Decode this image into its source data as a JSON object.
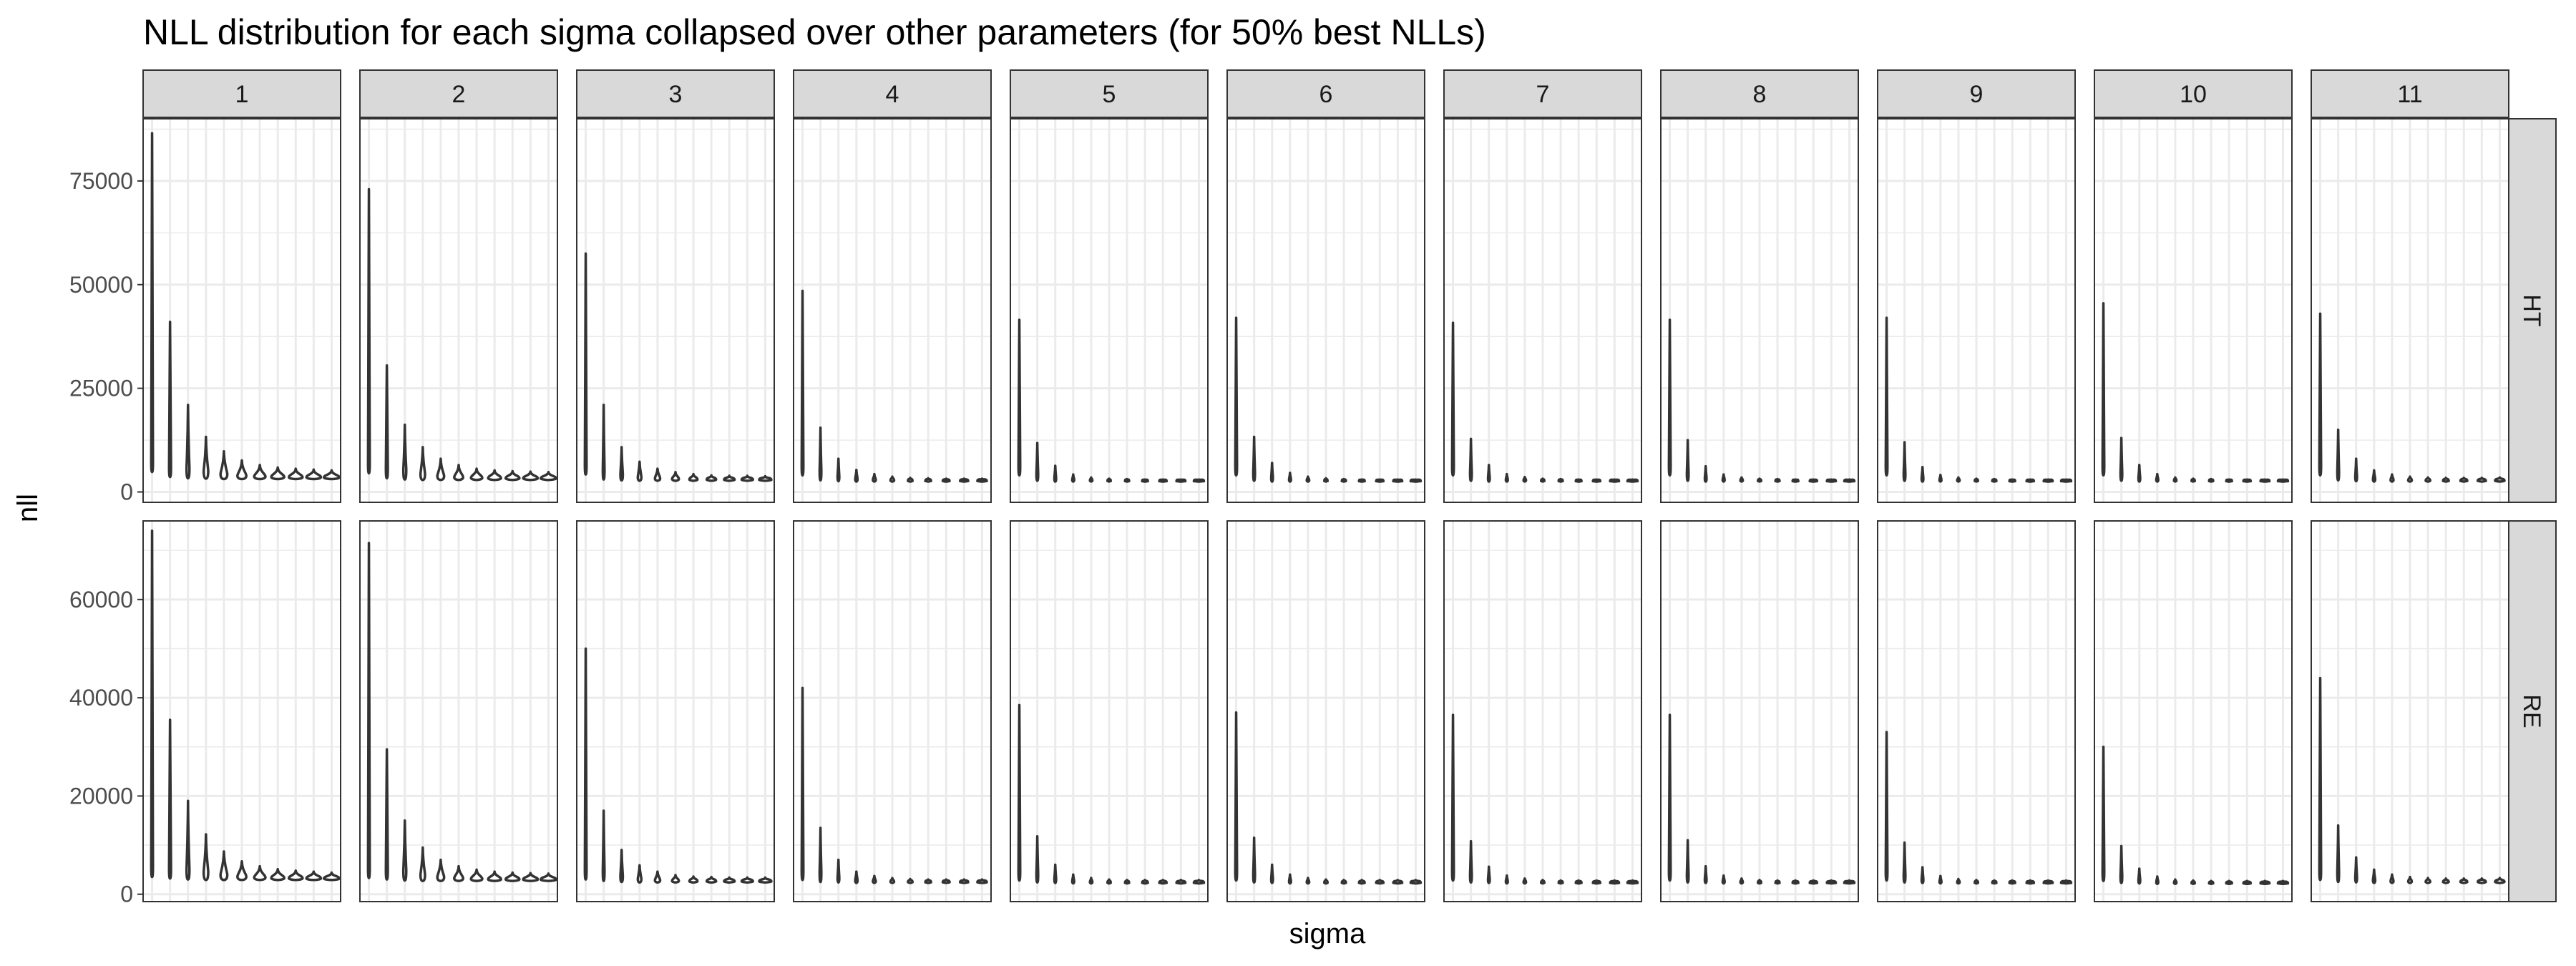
{
  "chart_data": {
    "type": "violin",
    "title": "NLL distribution for each sigma collapsed over other parameters (for 50% best NLLs)",
    "xlabel": "sigma",
    "ylabel": "nll",
    "facet_columns": [
      "1",
      "2",
      "3",
      "4",
      "5",
      "6",
      "7",
      "8",
      "9",
      "10",
      "11"
    ],
    "facet_rows": [
      "HT",
      "RE"
    ],
    "grid": true,
    "theme": "bw",
    "colors": {
      "panel_border": "#333333",
      "grid": "#ebebeb",
      "strip_fill": "#d9d9d9",
      "violin_stroke": "#333333",
      "text": "#4d4d4d"
    },
    "rows": [
      {
        "name": "HT",
        "ylim": [
          -2500,
          90000
        ],
        "yticks": [
          0,
          25000,
          50000,
          75000
        ],
        "yticklabels": [
          "0",
          "25000",
          "50000",
          "75000"
        ],
        "panels": [
          {
            "column": "1",
            "max": [
              86500,
              41000,
              21000,
              13300,
              9800,
              7600,
              6500,
              5900,
              5600,
              5400,
              5200
            ],
            "min": [
              4800,
              3600,
              3300,
              3200,
              3100,
              3100,
              3100,
              3100,
              3100,
              3100,
              3100
            ],
            "width": [
              0.1,
              0.12,
              0.18,
              0.28,
              0.42,
              0.55,
              0.7,
              0.8,
              0.85,
              0.9,
              0.95
            ]
          },
          {
            "column": "2",
            "max": [
              73000,
              30500,
              16200,
              10800,
              8000,
              6500,
              5600,
              5200,
              5000,
              4900,
              4800
            ],
            "min": [
              4500,
              3300,
              3000,
              2900,
              2900,
              2900,
              2900,
              2900,
              2900,
              2900,
              2900
            ],
            "width": [
              0.1,
              0.12,
              0.18,
              0.28,
              0.42,
              0.55,
              0.7,
              0.8,
              0.85,
              0.9,
              0.95
            ]
          },
          {
            "column": "3",
            "max": [
              57500,
              21000,
              10800,
              7300,
              5600,
              4800,
              4300,
              4000,
              3900,
              3900,
              3800
            ],
            "min": [
              4200,
              3000,
              2800,
              2700,
              2700,
              2700,
              2700,
              2700,
              2700,
              2700,
              2700
            ],
            "width": [
              0.08,
              0.1,
              0.15,
              0.22,
              0.32,
              0.42,
              0.5,
              0.58,
              0.65,
              0.7,
              0.75
            ]
          },
          {
            "column": "4",
            "max": [
              48500,
              15500,
              8000,
              5300,
              4300,
              3700,
              3400,
              3300,
              3200,
              3200,
              3200
            ],
            "min": [
              4000,
              2800,
              2600,
              2500,
              2500,
              2500,
              2500,
              2500,
              2500,
              2500,
              2500
            ],
            "width": [
              0.06,
              0.08,
              0.1,
              0.14,
              0.18,
              0.22,
              0.28,
              0.35,
              0.42,
              0.5,
              0.58
            ]
          },
          {
            "column": "5",
            "max": [
              41500,
              11800,
              6300,
              4200,
              3500,
              3200,
              3100,
              3000,
              3000,
              3000,
              3000
            ],
            "min": [
              4000,
              2700,
              2500,
              2500,
              2500,
              2500,
              2500,
              2500,
              2500,
              2500,
              2500
            ],
            "width": [
              0.06,
              0.07,
              0.09,
              0.12,
              0.15,
              0.2,
              0.25,
              0.35,
              0.45,
              0.55,
              0.62
            ]
          },
          {
            "column": "6",
            "max": [
              42000,
              13300,
              7000,
              4600,
              3700,
              3300,
              3100,
              3000,
              3000,
              3000,
              3000
            ],
            "min": [
              4000,
              2700,
              2500,
              2500,
              2500,
              2500,
              2500,
              2500,
              2500,
              2500,
              2500
            ],
            "width": [
              0.06,
              0.07,
              0.09,
              0.12,
              0.15,
              0.2,
              0.25,
              0.35,
              0.45,
              0.55,
              0.62
            ]
          },
          {
            "column": "7",
            "max": [
              40800,
              12800,
              6500,
              4300,
              3600,
              3200,
              3100,
              3000,
              3000,
              3000,
              3000
            ],
            "min": [
              4000,
              2700,
              2500,
              2500,
              2500,
              2500,
              2500,
              2500,
              2500,
              2500,
              2500
            ],
            "width": [
              0.06,
              0.07,
              0.09,
              0.12,
              0.15,
              0.2,
              0.25,
              0.35,
              0.45,
              0.55,
              0.62
            ]
          },
          {
            "column": "8",
            "max": [
              41500,
              12500,
              6200,
              4200,
              3500,
              3200,
              3100,
              3000,
              3000,
              3000,
              3000
            ],
            "min": [
              4000,
              2700,
              2500,
              2500,
              2500,
              2500,
              2500,
              2500,
              2500,
              2500,
              2500
            ],
            "width": [
              0.06,
              0.07,
              0.09,
              0.12,
              0.15,
              0.2,
              0.25,
              0.35,
              0.45,
              0.55,
              0.62
            ]
          },
          {
            "column": "9",
            "max": [
              42000,
              12000,
              6000,
              4100,
              3500,
              3200,
              3100,
              3000,
              3000,
              3000,
              3000
            ],
            "min": [
              4000,
              2700,
              2500,
              2500,
              2500,
              2500,
              2500,
              2500,
              2500,
              2500,
              2500
            ],
            "width": [
              0.06,
              0.07,
              0.09,
              0.12,
              0.15,
              0.2,
              0.25,
              0.35,
              0.45,
              0.55,
              0.62
            ]
          },
          {
            "column": "10",
            "max": [
              45500,
              13000,
              6500,
              4300,
              3500,
              3200,
              3100,
              3000,
              3000,
              3000,
              3000
            ],
            "min": [
              4000,
              2700,
              2500,
              2500,
              2500,
              2500,
              2500,
              2500,
              2500,
              2500,
              2500
            ],
            "width": [
              0.06,
              0.07,
              0.09,
              0.12,
              0.15,
              0.2,
              0.25,
              0.35,
              0.45,
              0.55,
              0.62
            ]
          },
          {
            "column": "11",
            "max": [
              43000,
              15000,
              8000,
              5200,
              4200,
              3700,
              3500,
              3400,
              3400,
              3400,
              3500
            ],
            "min": [
              4000,
              2800,
              2600,
              2500,
              2500,
              2500,
              2500,
              2500,
              2500,
              2500,
              2500
            ],
            "width": [
              0.06,
              0.08,
              0.1,
              0.14,
              0.18,
              0.22,
              0.28,
              0.35,
              0.42,
              0.5,
              0.58
            ]
          }
        ]
      },
      {
        "name": "RE",
        "ylim": [
          -1500,
          76000
        ],
        "yticks": [
          0,
          20000,
          40000,
          60000
        ],
        "yticklabels": [
          "0",
          "20000",
          "40000",
          "60000"
        ],
        "panels": [
          {
            "column": "1",
            "max": [
              74000,
              35500,
              19000,
              12200,
              8700,
              6700,
              5700,
              5100,
              4800,
              4600,
              4400
            ],
            "min": [
              3500,
              3200,
              3000,
              2900,
              2900,
              2900,
              2900,
              2900,
              2900,
              2900,
              2900
            ],
            "width": [
              0.1,
              0.12,
              0.18,
              0.28,
              0.42,
              0.55,
              0.7,
              0.8,
              0.85,
              0.9,
              0.95
            ]
          },
          {
            "column": "2",
            "max": [
              71500,
              29500,
              15000,
              9500,
              7000,
              5700,
              5000,
              4600,
              4400,
              4300,
              4200
            ],
            "min": [
              3300,
              3000,
              2800,
              2700,
              2700,
              2700,
              2700,
              2700,
              2700,
              2700,
              2700
            ],
            "width": [
              0.1,
              0.12,
              0.18,
              0.28,
              0.42,
              0.55,
              0.7,
              0.8,
              0.85,
              0.9,
              0.95
            ]
          },
          {
            "column": "3",
            "max": [
              50000,
              17000,
              9000,
              5900,
              4600,
              3900,
              3600,
              3500,
              3400,
              3400,
              3400
            ],
            "min": [
              3000,
              2700,
              2500,
              2400,
              2400,
              2400,
              2400,
              2400,
              2400,
              2400,
              2400
            ],
            "width": [
              0.08,
              0.1,
              0.15,
              0.22,
              0.32,
              0.42,
              0.5,
              0.58,
              0.65,
              0.7,
              0.75
            ]
          },
          {
            "column": "4",
            "max": [
              42000,
              13500,
              7000,
              4600,
              3700,
              3300,
              3100,
              3000,
              3000,
              3000,
              3000
            ],
            "min": [
              2900,
              2500,
              2400,
              2300,
              2300,
              2300,
              2300,
              2300,
              2300,
              2300,
              2300
            ],
            "width": [
              0.06,
              0.08,
              0.1,
              0.14,
              0.18,
              0.22,
              0.28,
              0.35,
              0.42,
              0.5,
              0.58
            ]
          },
          {
            "column": "5",
            "max": [
              38500,
              11800,
              6000,
              4000,
              3300,
              3000,
              2900,
              2900,
              2900,
              2900,
              2900
            ],
            "min": [
              2800,
              2400,
              2300,
              2200,
              2200,
              2200,
              2200,
              2200,
              2200,
              2200,
              2200
            ],
            "width": [
              0.06,
              0.07,
              0.09,
              0.12,
              0.15,
              0.2,
              0.25,
              0.35,
              0.45,
              0.55,
              0.62
            ]
          },
          {
            "column": "6",
            "max": [
              37000,
              11500,
              6000,
              4000,
              3300,
              3000,
              2900,
              2900,
              2900,
              2900,
              2900
            ],
            "min": [
              2800,
              2400,
              2300,
              2200,
              2200,
              2200,
              2200,
              2200,
              2200,
              2200,
              2200
            ],
            "width": [
              0.06,
              0.07,
              0.09,
              0.12,
              0.15,
              0.2,
              0.25,
              0.35,
              0.45,
              0.55,
              0.62
            ]
          },
          {
            "column": "7",
            "max": [
              36500,
              10800,
              5600,
              3800,
              3200,
              2900,
              2800,
              2800,
              2800,
              2800,
              2800
            ],
            "min": [
              2800,
              2400,
              2300,
              2200,
              2200,
              2200,
              2200,
              2200,
              2200,
              2200,
              2200
            ],
            "width": [
              0.06,
              0.07,
              0.09,
              0.12,
              0.15,
              0.2,
              0.25,
              0.35,
              0.45,
              0.55,
              0.62
            ]
          },
          {
            "column": "8",
            "max": [
              36500,
              11000,
              5700,
              3800,
              3200,
              2900,
              2800,
              2800,
              2800,
              2800,
              2800
            ],
            "min": [
              2800,
              2400,
              2300,
              2200,
              2200,
              2200,
              2200,
              2200,
              2200,
              2200,
              2200
            ],
            "width": [
              0.06,
              0.07,
              0.09,
              0.12,
              0.15,
              0.2,
              0.25,
              0.35,
              0.45,
              0.55,
              0.62
            ]
          },
          {
            "column": "9",
            "max": [
              33000,
              10500,
              5500,
              3700,
              3100,
              2900,
              2800,
              2800,
              2800,
              2800,
              2800
            ],
            "min": [
              2800,
              2400,
              2300,
              2200,
              2200,
              2200,
              2200,
              2200,
              2200,
              2200,
              2200
            ],
            "width": [
              0.06,
              0.07,
              0.09,
              0.12,
              0.15,
              0.2,
              0.25,
              0.35,
              0.45,
              0.55,
              0.62
            ]
          },
          {
            "column": "10",
            "max": [
              30000,
              9800,
              5200,
              3600,
              3000,
              2800,
              2700,
              2700,
              2700,
              2700,
              2700
            ],
            "min": [
              2700,
              2300,
              2200,
              2100,
              2100,
              2100,
              2100,
              2100,
              2100,
              2100,
              2100
            ],
            "width": [
              0.06,
              0.07,
              0.09,
              0.12,
              0.15,
              0.2,
              0.25,
              0.35,
              0.45,
              0.55,
              0.62
            ]
          },
          {
            "column": "11",
            "max": [
              44000,
              14000,
              7500,
              5000,
              4000,
              3500,
              3300,
              3200,
              3200,
              3200,
              3300
            ],
            "min": [
              2900,
              2500,
              2400,
              2300,
              2300,
              2300,
              2300,
              2300,
              2300,
              2300,
              2300
            ],
            "width": [
              0.06,
              0.08,
              0.1,
              0.14,
              0.18,
              0.22,
              0.28,
              0.35,
              0.42,
              0.5,
              0.58
            ]
          }
        ]
      }
    ]
  }
}
